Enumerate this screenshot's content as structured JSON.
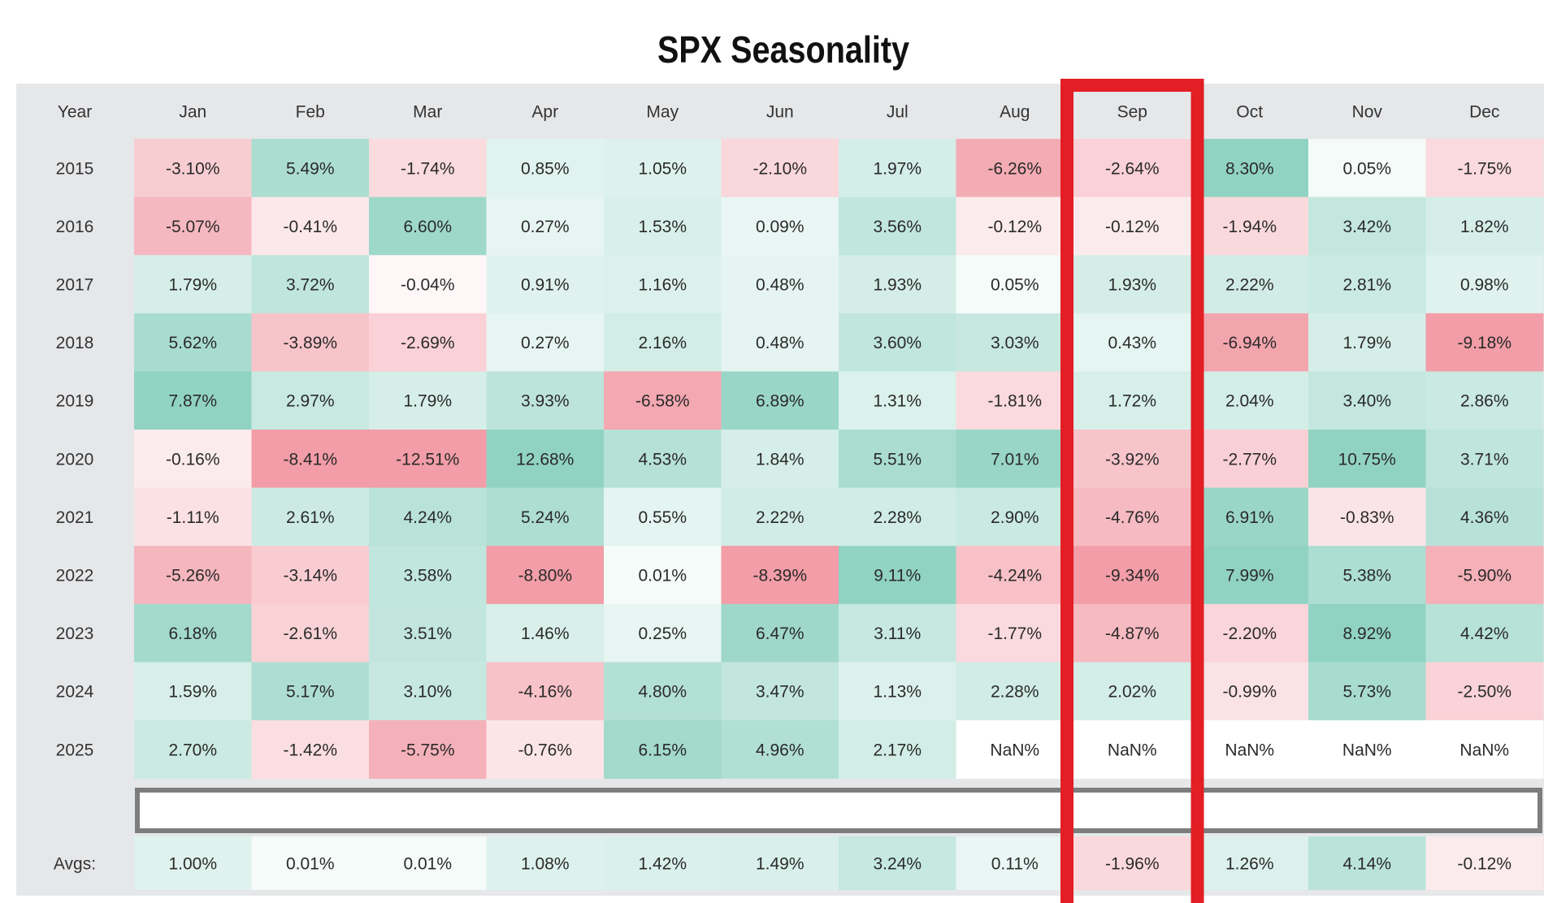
{
  "chart_data": {
    "type": "heatmap",
    "title": "SPX Seasonality",
    "row_header_label": "Year",
    "columns": [
      "Jan",
      "Feb",
      "Mar",
      "Apr",
      "May",
      "Jun",
      "Jul",
      "Aug",
      "Sep",
      "Oct",
      "Nov",
      "Dec"
    ],
    "rows": [
      {
        "label": "2015",
        "values": [
          "-3.10%",
          "5.49%",
          "-1.74%",
          "0.85%",
          "1.05%",
          "-2.10%",
          "1.97%",
          "-6.26%",
          "-2.64%",
          "8.30%",
          "0.05%",
          "-1.75%"
        ]
      },
      {
        "label": "2016",
        "values": [
          "-5.07%",
          "-0.41%",
          "6.60%",
          "0.27%",
          "1.53%",
          "0.09%",
          "3.56%",
          "-0.12%",
          "-0.12%",
          "-1.94%",
          "3.42%",
          "1.82%"
        ]
      },
      {
        "label": "2017",
        "values": [
          "1.79%",
          "3.72%",
          "-0.04%",
          "0.91%",
          "1.16%",
          "0.48%",
          "1.93%",
          "0.05%",
          "1.93%",
          "2.22%",
          "2.81%",
          "0.98%"
        ]
      },
      {
        "label": "2018",
        "values": [
          "5.62%",
          "-3.89%",
          "-2.69%",
          "0.27%",
          "2.16%",
          "0.48%",
          "3.60%",
          "3.03%",
          "0.43%",
          "-6.94%",
          "1.79%",
          "-9.18%"
        ]
      },
      {
        "label": "2019",
        "values": [
          "7.87%",
          "2.97%",
          "1.79%",
          "3.93%",
          "-6.58%",
          "6.89%",
          "1.31%",
          "-1.81%",
          "1.72%",
          "2.04%",
          "3.40%",
          "2.86%"
        ]
      },
      {
        "label": "2020",
        "values": [
          "-0.16%",
          "-8.41%",
          "-12.51%",
          "12.68%",
          "4.53%",
          "1.84%",
          "5.51%",
          "7.01%",
          "-3.92%",
          "-2.77%",
          "10.75%",
          "3.71%"
        ]
      },
      {
        "label": "2021",
        "values": [
          "-1.11%",
          "2.61%",
          "4.24%",
          "5.24%",
          "0.55%",
          "2.22%",
          "2.28%",
          "2.90%",
          "-4.76%",
          "6.91%",
          "-0.83%",
          "4.36%"
        ]
      },
      {
        "label": "2022",
        "values": [
          "-5.26%",
          "-3.14%",
          "3.58%",
          "-8.80%",
          "0.01%",
          "-8.39%",
          "9.11%",
          "-4.24%",
          "-9.34%",
          "7.99%",
          "5.38%",
          "-5.90%"
        ]
      },
      {
        "label": "2023",
        "values": [
          "6.18%",
          "-2.61%",
          "3.51%",
          "1.46%",
          "0.25%",
          "6.47%",
          "3.11%",
          "-1.77%",
          "-4.87%",
          "-2.20%",
          "8.92%",
          "4.42%"
        ]
      },
      {
        "label": "2024",
        "values": [
          "1.59%",
          "5.17%",
          "3.10%",
          "-4.16%",
          "4.80%",
          "3.47%",
          "1.13%",
          "2.28%",
          "2.02%",
          "-0.99%",
          "5.73%",
          "-2.50%"
        ]
      },
      {
        "label": "2025",
        "values": [
          "2.70%",
          "-1.42%",
          "-5.75%",
          "-0.76%",
          "6.15%",
          "4.96%",
          "2.17%",
          "NaN%",
          "NaN%",
          "NaN%",
          "NaN%",
          "NaN%"
        ]
      }
    ],
    "averages": {
      "label": "Avgs:",
      "values": [
        "1.00%",
        "0.01%",
        "0.01%",
        "1.08%",
        "1.42%",
        "1.49%",
        "3.24%",
        "0.11%",
        "-1.96%",
        "1.26%",
        "4.14%",
        "-0.12%"
      ]
    },
    "highlighted_column": "Sep",
    "colors": {
      "positive": "#7ecbb8",
      "negative": "#f08c98",
      "neutral": "#ffffff",
      "nan": "#ffffff",
      "header_background": "#e6e7e9",
      "highlight_border": "#e31e24",
      "blank_bar_border": "#7d7d7d"
    }
  }
}
